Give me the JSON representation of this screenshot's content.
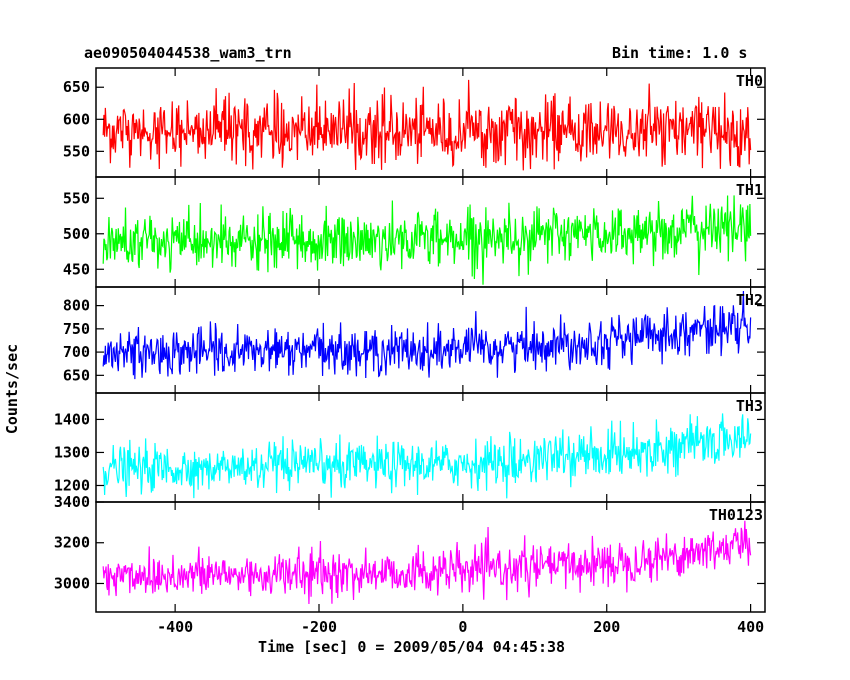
{
  "header": {
    "title": "ae090504044538_wam3_trn",
    "bin_time": "Bin time: 1.0 s"
  },
  "axes": {
    "xlabel": "Time [sec] 0 = 2009/05/04 04:45:38",
    "ylabel": "Counts/sec"
  },
  "chart_data": {
    "type": "line",
    "title": "ae090504044538_wam3_trn",
    "subtitle": "Bin time: 1.0 s",
    "xlabel": "Time [sec] 0 = 2009/05/04 04:45:38",
    "ylabel": "Counts/sec",
    "xlim": [
      -510,
      420
    ],
    "x_ticks": [
      -400,
      -200,
      0,
      200,
      400
    ],
    "x_start": -500,
    "x_end": 400,
    "x_step": 1,
    "grid": false,
    "panels": [
      {
        "name": "TH0",
        "color": "#ff0000",
        "ylim": [
          510,
          680
        ],
        "y_ticks": [
          550,
          600,
          650
        ],
        "mean_profile": [
          [
            -500,
            583
          ],
          [
            -200,
            582
          ],
          [
            0,
            581
          ],
          [
            200,
            580
          ],
          [
            400,
            583
          ]
        ],
        "noise_sd": 25,
        "spike_range": [
          520,
          670
        ]
      },
      {
        "name": "TH1",
        "color": "#00ff00",
        "ylim": [
          425,
          580
        ],
        "y_ticks": [
          450,
          500,
          550
        ],
        "mean_profile": [
          [
            -500,
            487
          ],
          [
            -200,
            488
          ],
          [
            0,
            495
          ],
          [
            200,
            500
          ],
          [
            400,
            510
          ]
        ],
        "noise_sd": 20,
        "spike_range": [
          428,
          578
        ]
      },
      {
        "name": "TH2",
        "color": "#0000ff",
        "ylim": [
          612,
          840
        ],
        "y_ticks": [
          650,
          700,
          750,
          800
        ],
        "mean_profile": [
          [
            -500,
            700
          ],
          [
            -200,
            701
          ],
          [
            0,
            705
          ],
          [
            200,
            725
          ],
          [
            300,
            745
          ],
          [
            400,
            757
          ]
        ],
        "noise_sd": 25,
        "spike_range": [
          640,
          838
        ]
      },
      {
        "name": "TH3",
        "color": "#00ffff",
        "ylim": [
          1150,
          1480
        ],
        "y_ticks": [
          1200,
          1300,
          1400
        ],
        "mean_profile": [
          [
            -500,
            1250
          ],
          [
            -200,
            1255
          ],
          [
            0,
            1265
          ],
          [
            200,
            1295
          ],
          [
            300,
            1320
          ],
          [
            400,
            1345
          ]
        ],
        "noise_sd": 35,
        "spike_range": [
          1160,
          1475
        ]
      },
      {
        "name": "TH0123",
        "color": "#ff00ff",
        "ylim": [
          2860,
          3400
        ],
        "y_ticks": [
          3000,
          3200,
          3400
        ],
        "mean_profile": [
          [
            -500,
            3040
          ],
          [
            -200,
            3045
          ],
          [
            0,
            3060
          ],
          [
            200,
            3100
          ],
          [
            300,
            3140
          ],
          [
            400,
            3200
          ]
        ],
        "noise_sd": 55,
        "spike_range": [
          2880,
          3330
        ]
      }
    ]
  }
}
